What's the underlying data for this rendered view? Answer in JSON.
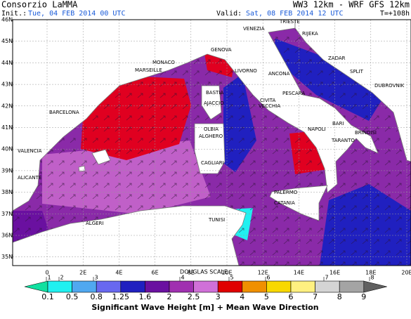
{
  "header": {
    "org": "Consorzio LaMMA",
    "model": "WW3 12km - WRF GFS 12km",
    "init_label": "Init.:",
    "init_value": "Tue, 04 FEB 2014  00 UTC",
    "valid_label": "Valid:",
    "valid_value": "Sat, 08 FEB 2014  12 UTC",
    "lead": "T=+108h"
  },
  "map": {
    "lat_labels": [
      "46N",
      "45N",
      "44N",
      "43N",
      "42N",
      "41N",
      "40N",
      "39N",
      "38N",
      "37N",
      "36N",
      "35N"
    ],
    "lon_labels": [
      "0",
      "2E",
      "4E",
      "6E",
      "8E",
      "10E",
      "12E",
      "14E",
      "16E",
      "18E",
      "20E"
    ],
    "cities": [
      "TRIESTE",
      "VENEZIA",
      "RIJEKA",
      "ZADAR",
      "SPLIT",
      "DUBROVNIK",
      "ANCONA",
      "PESCARA",
      "BARI",
      "BRINDISI",
      "TARANTO",
      "NAPOLI",
      "CIVITA",
      "VECCHIA",
      "LIVORNO",
      "GENOVA",
      "MONACO",
      "MARSEILLE",
      "BASTIA",
      "AJACCIO",
      "OLBIA",
      "ALGHERO",
      "CAGLIARI",
      "PALERMO",
      "CATANIA",
      "TUNISI",
      "ALGERI",
      "BARCELONA",
      "VALENCIA",
      "ALICANTE"
    ]
  },
  "legend": {
    "douglas_title": "DOUGLAS SCALE",
    "douglas": [
      1,
      2,
      3,
      4,
      5,
      6,
      7,
      8
    ],
    "thresholds": [
      0.1,
      0.5,
      0.8,
      1.25,
      1.6,
      2,
      2.5,
      3,
      4,
      5,
      6,
      7,
      8,
      9
    ],
    "colors": [
      "#10e0a0",
      "#20f0f0",
      "#50a8f0",
      "#6868f0",
      "#2020c0",
      "#6a10a0",
      "#a030b0",
      "#d070d8",
      "#e00000",
      "#f09000",
      "#f8d800",
      "#fff080",
      "#d4d4d4",
      "#a4a4a4",
      "#606060"
    ],
    "caption": "Significant Wave Height [m] + Mean Wave Direction"
  }
}
